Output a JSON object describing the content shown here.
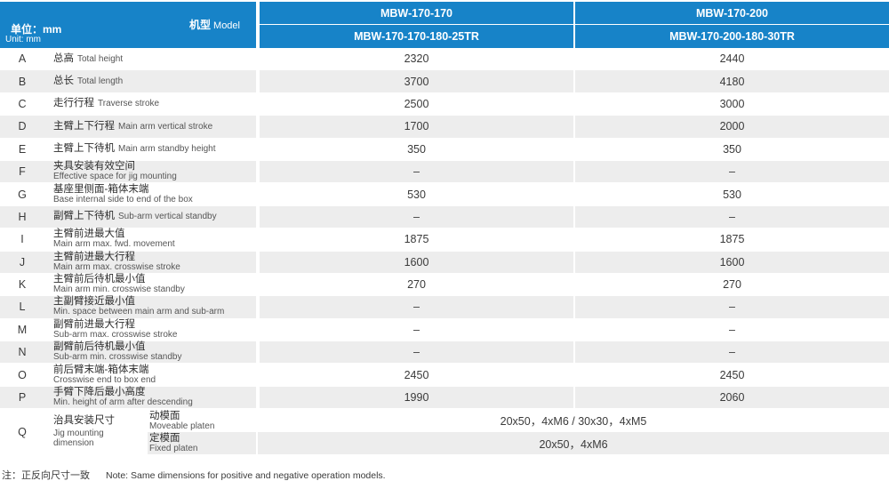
{
  "header": {
    "unit_zh": "单位：mm",
    "unit_en": "Unit: mm",
    "model_zh": "机型",
    "model_en": "Model",
    "col1_top": "MBW-170-170",
    "col1_bottom": "MBW-170-170-180-25TR",
    "col2_top": "MBW-170-200",
    "col2_bottom": "MBW-170-200-180-30TR"
  },
  "rows": [
    {
      "code": "A",
      "zh": "总高",
      "en": "Total height",
      "layout": "inline",
      "v1": "2320",
      "v2": "2440"
    },
    {
      "code": "B",
      "zh": "总长",
      "en": "Total length",
      "layout": "inline",
      "v1": "3700",
      "v2": "4180"
    },
    {
      "code": "C",
      "zh": "走行行程",
      "en": "Traverse stroke",
      "layout": "inline",
      "v1": "2500",
      "v2": "3000"
    },
    {
      "code": "D",
      "zh": "主臂上下行程",
      "en": "Main arm vertical stroke",
      "layout": "inline",
      "v1": "1700",
      "v2": "2000"
    },
    {
      "code": "E",
      "zh": "主臂上下待机",
      "en": "Main arm standby height",
      "layout": "inline",
      "v1": "350",
      "v2": "350"
    },
    {
      "code": "F",
      "zh": "夹具安装有效空间",
      "en": "Effective space for jig mounting",
      "layout": "stack",
      "v1": "–",
      "v2": "–"
    },
    {
      "code": "G",
      "zh": "基座里侧面-箱体末端",
      "en": "Base internal side to end of the box",
      "layout": "stack",
      "v1": "530",
      "v2": "530"
    },
    {
      "code": "H",
      "zh": "副臂上下待机",
      "en": "Sub-arm vertical standby",
      "layout": "inline",
      "v1": "–",
      "v2": "–"
    },
    {
      "code": "I",
      "zh": "主臂前进最大值",
      "en": "Main arm max. fwd. movement",
      "layout": "stack",
      "v1": "1875",
      "v2": "1875"
    },
    {
      "code": "J",
      "zh": "主臂前进最大行程",
      "en": "Main arm max. crosswise stroke",
      "layout": "stack",
      "v1": "1600",
      "v2": "1600"
    },
    {
      "code": "K",
      "zh": "主臂前后待机最小值",
      "en": "Main arm min. crosswise standby",
      "layout": "stack",
      "v1": "270",
      "v2": "270"
    },
    {
      "code": "L",
      "zh": "主副臂接近最小值",
      "en": "Min. space between main arm and sub-arm",
      "layout": "stack",
      "v1": "–",
      "v2": "–"
    },
    {
      "code": "M",
      "zh": "副臂前进最大行程",
      "en": "Sub-arm max. crosswise stroke",
      "layout": "stack",
      "v1": "–",
      "v2": "–"
    },
    {
      "code": "N",
      "zh": "副臂前后待机最小值",
      "en": "Sub-arm min. crosswise standby",
      "layout": "stack",
      "v1": "–",
      "v2": "–"
    },
    {
      "code": "O",
      "zh": "前后臂末端-箱体末端",
      "en": "Crosswise end to box end",
      "layout": "stack",
      "v1": "2450",
      "v2": "2450"
    },
    {
      "code": "P",
      "zh": "手臂下降后最小高度",
      "en": "Min. height of arm after descending",
      "layout": "stack",
      "v1": "1990",
      "v2": "2060"
    }
  ],
  "q": {
    "code": "Q",
    "zh": "治具安装尺寸",
    "en_line1": "Jig mounting",
    "en_line2": "dimension",
    "sub1_zh": "动模面",
    "sub1_en": "Moveable platen",
    "sub1_val": "20x50，4xM6 / 30x30，4xM5",
    "sub2_zh": "定模面",
    "sub2_en": "Fixed platen",
    "sub2_val": "20x50，4xM6"
  },
  "note": {
    "zh": "注：正反向尺寸一致",
    "en": "Note: Same dimensions for positive and negative operation models."
  },
  "colors": {
    "header_bg": "#1783c8",
    "header_text": "#ffffff",
    "stripe": "#ededed"
  }
}
